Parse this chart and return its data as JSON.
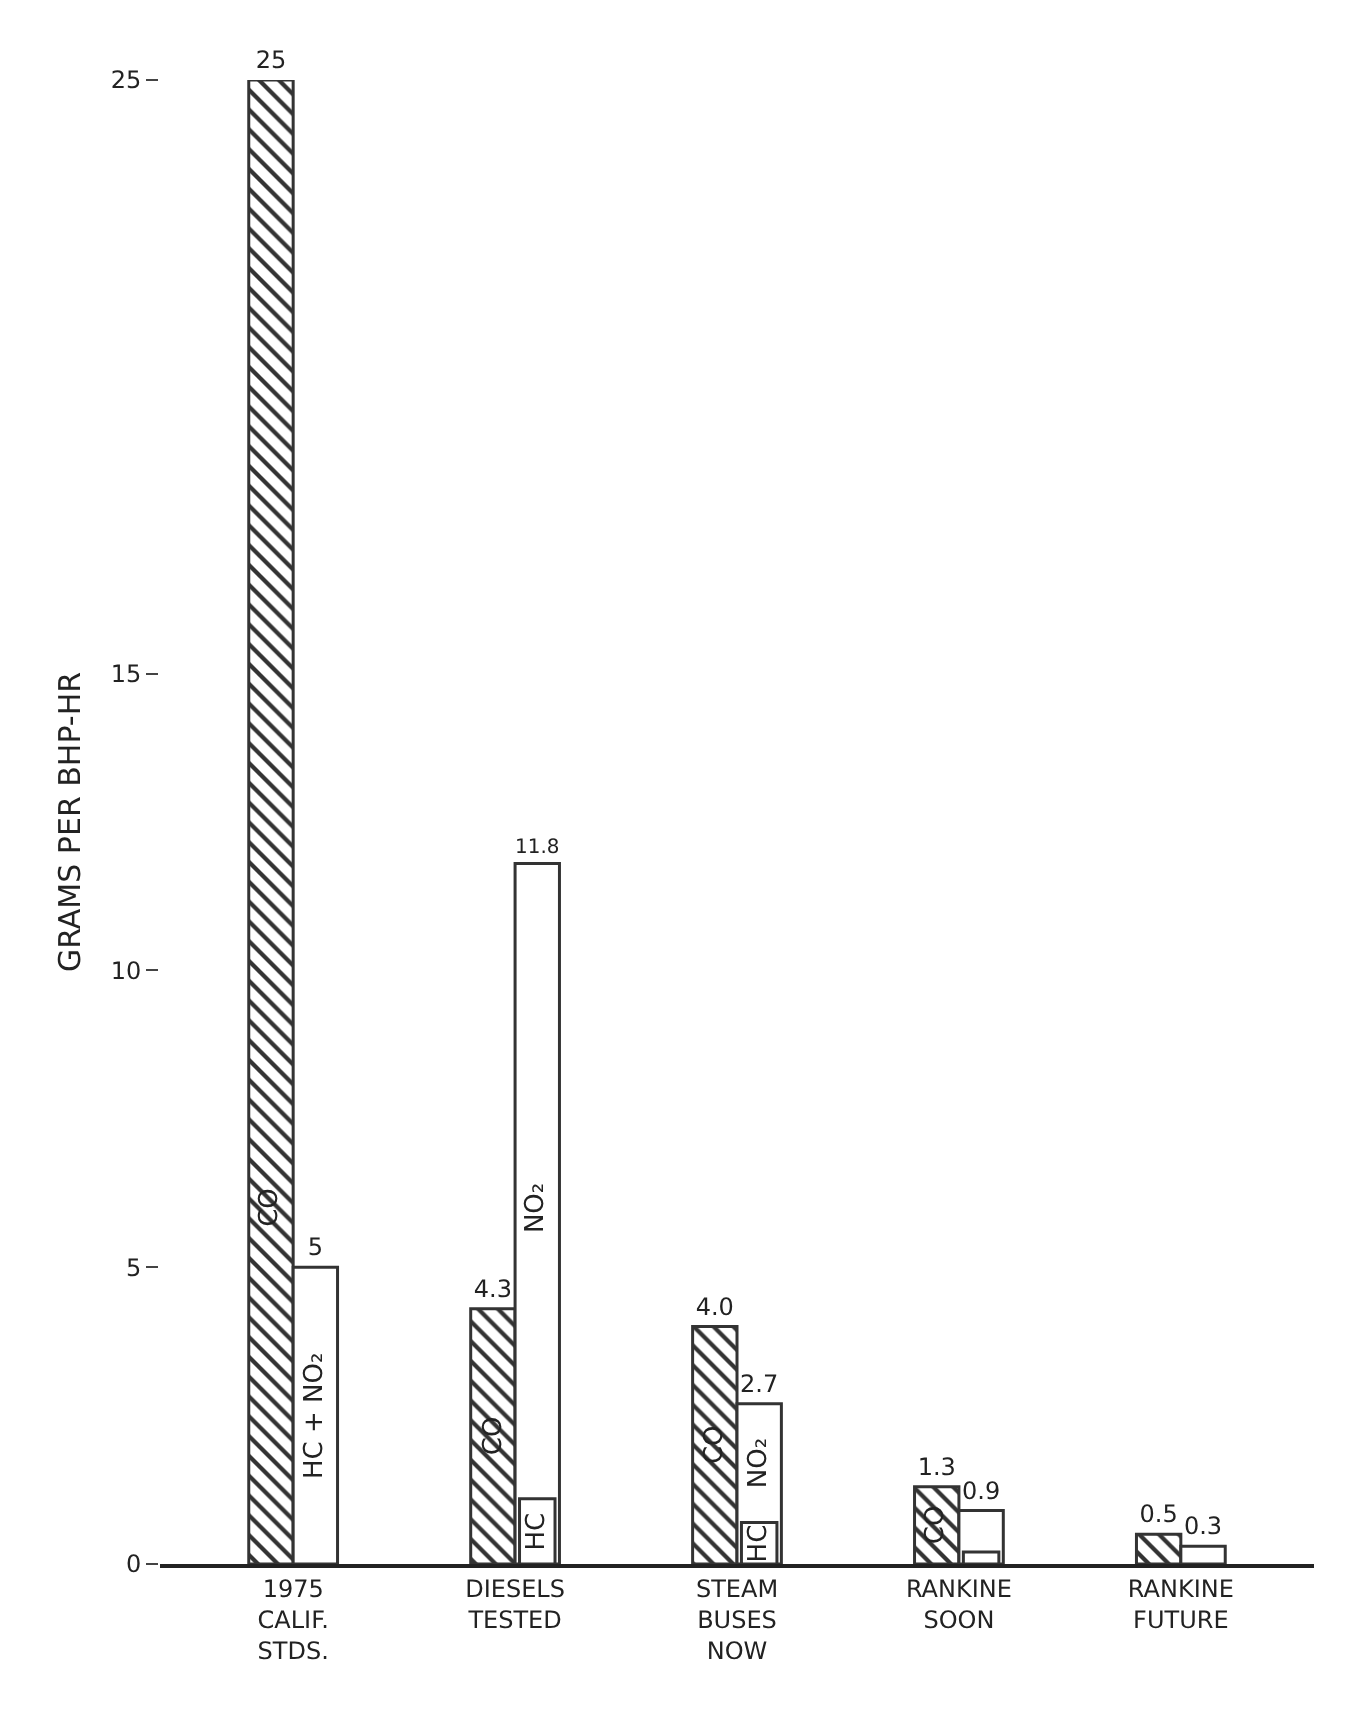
{
  "chart_data": {
    "type": "bar",
    "ylabel": "GRAMS PER BHP-HR",
    "categories": [
      "1975 CALIF. STDS.",
      "DIESELS TESTED",
      "STEAM BUSES NOW",
      "RANKINE SOON",
      "RANKINE FUTURE"
    ],
    "series": [
      {
        "name": "CO",
        "color": "#333333",
        "values": [
          25,
          4.3,
          4.0,
          1.3,
          0.5
        ],
        "value_labels": [
          "25",
          "4.3",
          "4.0",
          "1.3",
          "0.5"
        ]
      },
      {
        "name": "HC + NO₂",
        "color": "#ffffff",
        "values": [
          5,
          11.8,
          2.7,
          0.9,
          0.3
        ],
        "value_labels": [
          "5",
          "11.8",
          "2.7",
          "0.9",
          "0.3"
        ]
      },
      {
        "name": "HC",
        "color": "#ffffff",
        "values": [
          null,
          1.1,
          0.7,
          0.2,
          null
        ]
      }
    ],
    "annotations": [
      {
        "text": "NO₂",
        "x": "DIESELS TESTED",
        "y": 6
      },
      {
        "text": "NO₂",
        "x": "STEAM BUSES NOW",
        "y": 1.7
      }
    ],
    "ylim": [
      0,
      25
    ],
    "yticks": [
      0,
      5,
      10,
      15,
      25
    ],
    "grid": false,
    "legend": false
  }
}
